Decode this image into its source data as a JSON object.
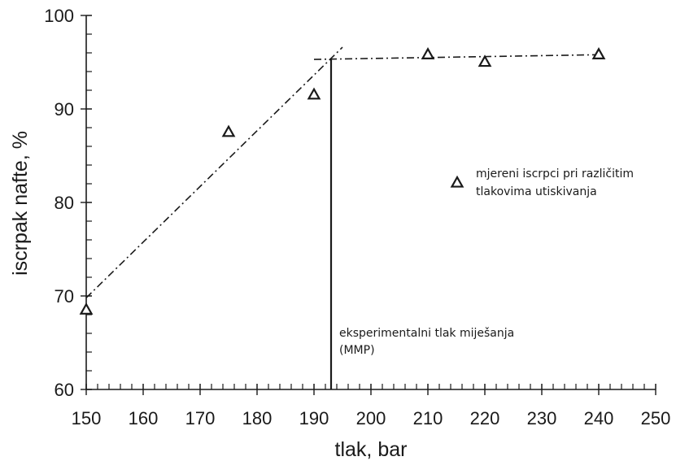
{
  "chart_data": {
    "type": "scatter",
    "xlabel": "tlak, bar",
    "ylabel": "iscrpak nafte, %",
    "xlim": [
      150,
      250
    ],
    "ylim": [
      60,
      100
    ],
    "x_ticks": [
      150,
      160,
      170,
      180,
      190,
      200,
      210,
      220,
      230,
      240,
      250
    ],
    "y_ticks": [
      60,
      70,
      80,
      90,
      100
    ],
    "x_minor_step": 2,
    "y_minor_step": 2,
    "grid": false,
    "legend_position": "right",
    "series": [
      {
        "name": "mjereni iscrpci pri različitim tlakovima utiskivanja",
        "legend_lines": [
          "mjereni iscrpci pri različitim",
          "tlakovima utiskivanja"
        ],
        "marker": "triangle-outline",
        "points": [
          {
            "x": 150,
            "y": 68.5
          },
          {
            "x": 175,
            "y": 87.5
          },
          {
            "x": 190,
            "y": 91.5
          },
          {
            "x": 210,
            "y": 95.8
          },
          {
            "x": 220,
            "y": 95.0
          },
          {
            "x": 240,
            "y": 95.8
          }
        ]
      }
    ],
    "trend_lines": [
      {
        "style": "dash-dot",
        "from": {
          "x": 150,
          "y": 69.8
        },
        "to": {
          "x": 195,
          "y": 96.6
        }
      },
      {
        "style": "dash-dot",
        "from": {
          "x": 190,
          "y": 95.3
        },
        "to": {
          "x": 240,
          "y": 95.8
        }
      }
    ],
    "mmp_marker": {
      "x": 193,
      "y_top": 95.4,
      "label_lines": [
        "eksperimentalni tlak miješanja",
        "(MMP)"
      ]
    },
    "colors": {
      "ink": "#1a1a1a"
    }
  }
}
